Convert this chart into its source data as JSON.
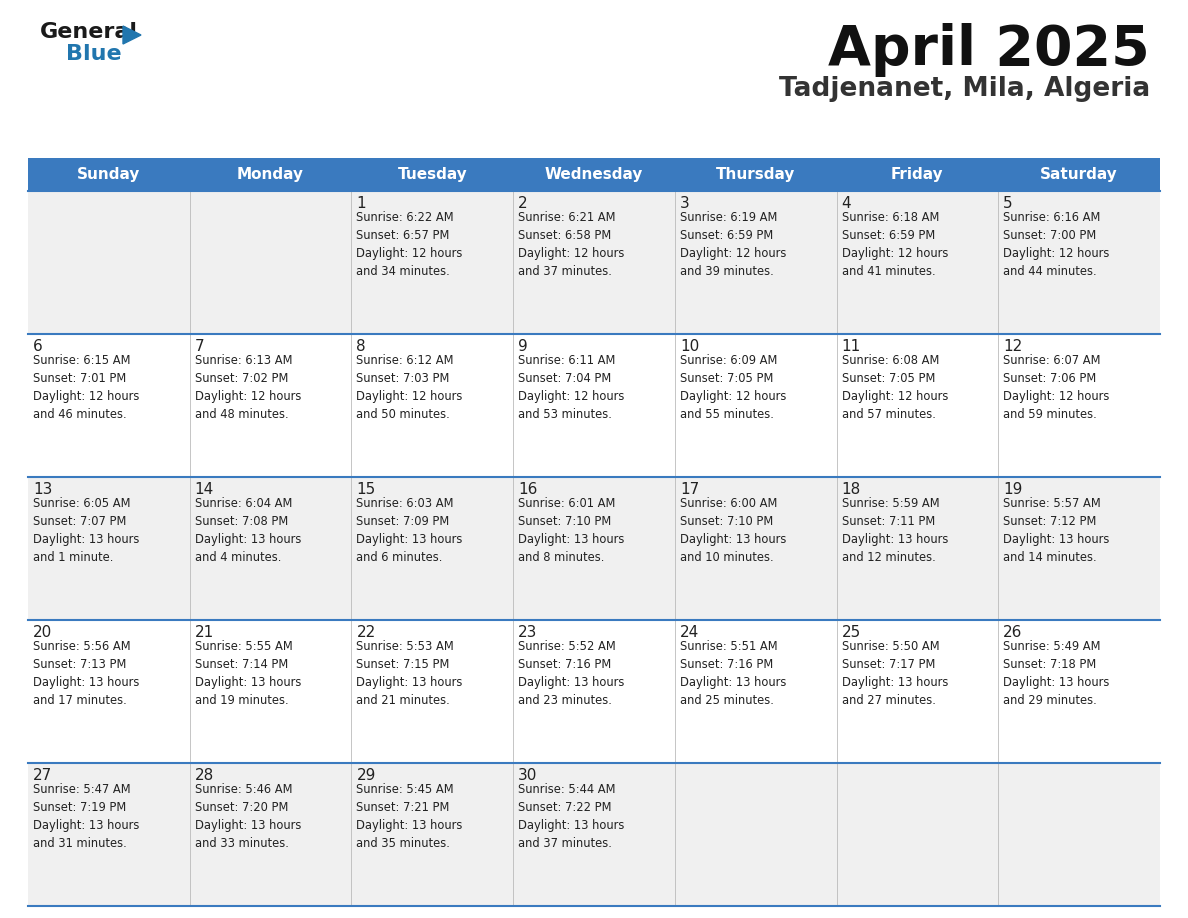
{
  "title": "April 2025",
  "subtitle": "Tadjenanet, Mila, Algeria",
  "header_bg_color": "#3a7abf",
  "header_text_color": "#ffffff",
  "days_of_week": [
    "Sunday",
    "Monday",
    "Tuesday",
    "Wednesday",
    "Thursday",
    "Friday",
    "Saturday"
  ],
  "row_bg_colors": [
    "#f0f0f0",
    "#ffffff"
  ],
  "divider_color": "#3a7abf",
  "cell_text_color": "#222222",
  "logo_general_color": "#1a1a1a",
  "logo_blue_color": "#2176ae",
  "weeks": [
    [
      {
        "day": "",
        "info": ""
      },
      {
        "day": "",
        "info": ""
      },
      {
        "day": "1",
        "info": "Sunrise: 6:22 AM\nSunset: 6:57 PM\nDaylight: 12 hours\nand 34 minutes."
      },
      {
        "day": "2",
        "info": "Sunrise: 6:21 AM\nSunset: 6:58 PM\nDaylight: 12 hours\nand 37 minutes."
      },
      {
        "day": "3",
        "info": "Sunrise: 6:19 AM\nSunset: 6:59 PM\nDaylight: 12 hours\nand 39 minutes."
      },
      {
        "day": "4",
        "info": "Sunrise: 6:18 AM\nSunset: 6:59 PM\nDaylight: 12 hours\nand 41 minutes."
      },
      {
        "day": "5",
        "info": "Sunrise: 6:16 AM\nSunset: 7:00 PM\nDaylight: 12 hours\nand 44 minutes."
      }
    ],
    [
      {
        "day": "6",
        "info": "Sunrise: 6:15 AM\nSunset: 7:01 PM\nDaylight: 12 hours\nand 46 minutes."
      },
      {
        "day": "7",
        "info": "Sunrise: 6:13 AM\nSunset: 7:02 PM\nDaylight: 12 hours\nand 48 minutes."
      },
      {
        "day": "8",
        "info": "Sunrise: 6:12 AM\nSunset: 7:03 PM\nDaylight: 12 hours\nand 50 minutes."
      },
      {
        "day": "9",
        "info": "Sunrise: 6:11 AM\nSunset: 7:04 PM\nDaylight: 12 hours\nand 53 minutes."
      },
      {
        "day": "10",
        "info": "Sunrise: 6:09 AM\nSunset: 7:05 PM\nDaylight: 12 hours\nand 55 minutes."
      },
      {
        "day": "11",
        "info": "Sunrise: 6:08 AM\nSunset: 7:05 PM\nDaylight: 12 hours\nand 57 minutes."
      },
      {
        "day": "12",
        "info": "Sunrise: 6:07 AM\nSunset: 7:06 PM\nDaylight: 12 hours\nand 59 minutes."
      }
    ],
    [
      {
        "day": "13",
        "info": "Sunrise: 6:05 AM\nSunset: 7:07 PM\nDaylight: 13 hours\nand 1 minute."
      },
      {
        "day": "14",
        "info": "Sunrise: 6:04 AM\nSunset: 7:08 PM\nDaylight: 13 hours\nand 4 minutes."
      },
      {
        "day": "15",
        "info": "Sunrise: 6:03 AM\nSunset: 7:09 PM\nDaylight: 13 hours\nand 6 minutes."
      },
      {
        "day": "16",
        "info": "Sunrise: 6:01 AM\nSunset: 7:10 PM\nDaylight: 13 hours\nand 8 minutes."
      },
      {
        "day": "17",
        "info": "Sunrise: 6:00 AM\nSunset: 7:10 PM\nDaylight: 13 hours\nand 10 minutes."
      },
      {
        "day": "18",
        "info": "Sunrise: 5:59 AM\nSunset: 7:11 PM\nDaylight: 13 hours\nand 12 minutes."
      },
      {
        "day": "19",
        "info": "Sunrise: 5:57 AM\nSunset: 7:12 PM\nDaylight: 13 hours\nand 14 minutes."
      }
    ],
    [
      {
        "day": "20",
        "info": "Sunrise: 5:56 AM\nSunset: 7:13 PM\nDaylight: 13 hours\nand 17 minutes."
      },
      {
        "day": "21",
        "info": "Sunrise: 5:55 AM\nSunset: 7:14 PM\nDaylight: 13 hours\nand 19 minutes."
      },
      {
        "day": "22",
        "info": "Sunrise: 5:53 AM\nSunset: 7:15 PM\nDaylight: 13 hours\nand 21 minutes."
      },
      {
        "day": "23",
        "info": "Sunrise: 5:52 AM\nSunset: 7:16 PM\nDaylight: 13 hours\nand 23 minutes."
      },
      {
        "day": "24",
        "info": "Sunrise: 5:51 AM\nSunset: 7:16 PM\nDaylight: 13 hours\nand 25 minutes."
      },
      {
        "day": "25",
        "info": "Sunrise: 5:50 AM\nSunset: 7:17 PM\nDaylight: 13 hours\nand 27 minutes."
      },
      {
        "day": "26",
        "info": "Sunrise: 5:49 AM\nSunset: 7:18 PM\nDaylight: 13 hours\nand 29 minutes."
      }
    ],
    [
      {
        "day": "27",
        "info": "Sunrise: 5:47 AM\nSunset: 7:19 PM\nDaylight: 13 hours\nand 31 minutes."
      },
      {
        "day": "28",
        "info": "Sunrise: 5:46 AM\nSunset: 7:20 PM\nDaylight: 13 hours\nand 33 minutes."
      },
      {
        "day": "29",
        "info": "Sunrise: 5:45 AM\nSunset: 7:21 PM\nDaylight: 13 hours\nand 35 minutes."
      },
      {
        "day": "30",
        "info": "Sunrise: 5:44 AM\nSunset: 7:22 PM\nDaylight: 13 hours\nand 37 minutes."
      },
      {
        "day": "",
        "info": ""
      },
      {
        "day": "",
        "info": ""
      },
      {
        "day": "",
        "info": ""
      }
    ]
  ]
}
